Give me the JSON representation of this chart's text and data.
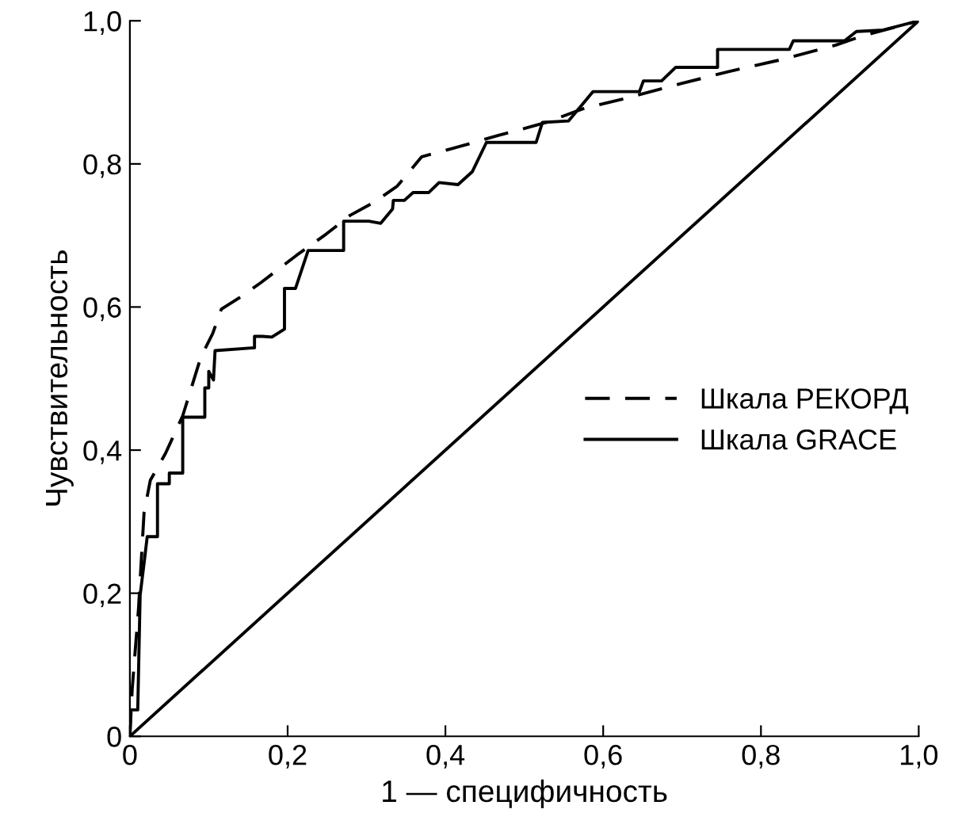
{
  "chart_data": {
    "type": "line",
    "xlabel": "1 — специфичность",
    "ylabel": "Чувствительность",
    "xlim": [
      0,
      1
    ],
    "ylim": [
      0,
      1
    ],
    "xticks": [
      0,
      {
        "value": 0.2,
        "label": "0,2"
      },
      {
        "value": 0.4,
        "label": "0,4"
      },
      {
        "value": 0.6,
        "label": "0,6"
      },
      {
        "value": 0.8,
        "label": "0,8"
      },
      {
        "value": 1,
        "label": "1,0"
      }
    ],
    "yticks": [
      0,
      {
        "value": 0.2,
        "label": "0,2"
      },
      {
        "value": 0.4,
        "label": "0,4"
      },
      {
        "value": 0.6,
        "label": "0,6"
      },
      {
        "value": 0.8,
        "label": "0,8"
      },
      {
        "value": 1,
        "label": "1,0"
      }
    ],
    "grid": false,
    "legend": "right",
    "marker": "none",
    "series": [
      {
        "name": "Шкала РЕКОРД",
        "color": "#000000",
        "line_style": "dashed",
        "x": [
          0,
          0.003,
          0.011,
          0.018,
          0.026,
          0.045,
          0.067,
          0.09,
          0.105,
          0.116,
          0.143,
          0.166,
          0.211,
          0.249,
          0.279,
          0.309,
          0.339,
          0.37,
          0.407,
          0.468,
          0.528,
          0.574,
          0.63,
          0.698,
          0.759,
          0.827,
          0.895,
          0.929,
          0.963,
          1.0
        ],
        "values": [
          0,
          0.067,
          0.179,
          0.313,
          0.358,
          0.395,
          0.448,
          0.53,
          0.563,
          0.597,
          0.616,
          0.634,
          0.672,
          0.702,
          0.728,
          0.746,
          0.769,
          0.81,
          0.821,
          0.84,
          0.858,
          0.877,
          0.892,
          0.912,
          0.929,
          0.946,
          0.966,
          0.979,
          0.989,
          1.0
        ]
      },
      {
        "name": "Шкала GRACE",
        "color": "#000000",
        "line_style": "solid",
        "x": [
          0,
          0.001,
          0.01,
          0.013,
          0.018,
          0.022,
          0.035,
          0.035,
          0.05,
          0.05,
          0.067,
          0.067,
          0.095,
          0.095,
          0.1,
          0.1,
          0.106,
          0.108,
          0.158,
          0.158,
          0.168,
          0.18,
          0.196,
          0.196,
          0.21,
          0.226,
          0.271,
          0.271,
          0.303,
          0.318,
          0.333,
          0.334,
          0.348,
          0.359,
          0.379,
          0.392,
          0.416,
          0.434,
          0.452,
          0.515,
          0.523,
          0.556,
          0.587,
          0.646,
          0.651,
          0.674,
          0.692,
          0.745,
          0.745,
          0.836,
          0.841,
          0.906,
          0.921,
          0.955,
          1.0
        ],
        "values": [
          0,
          0.037,
          0.037,
          0.197,
          0.242,
          0.279,
          0.279,
          0.353,
          0.353,
          0.368,
          0.368,
          0.446,
          0.446,
          0.487,
          0.487,
          0.51,
          0.498,
          0.539,
          0.543,
          0.559,
          0.559,
          0.558,
          0.569,
          0.626,
          0.626,
          0.679,
          0.679,
          0.72,
          0.72,
          0.717,
          0.737,
          0.749,
          0.749,
          0.76,
          0.76,
          0.774,
          0.771,
          0.789,
          0.83,
          0.83,
          0.858,
          0.86,
          0.901,
          0.901,
          0.916,
          0.916,
          0.935,
          0.935,
          0.96,
          0.96,
          0.972,
          0.972,
          0.985,
          0.987,
          1.0
        ]
      },
      {
        "color": "#000000",
        "line_style": "solid",
        "x": [
          0,
          1
        ],
        "values": [
          0,
          1
        ]
      }
    ]
  }
}
